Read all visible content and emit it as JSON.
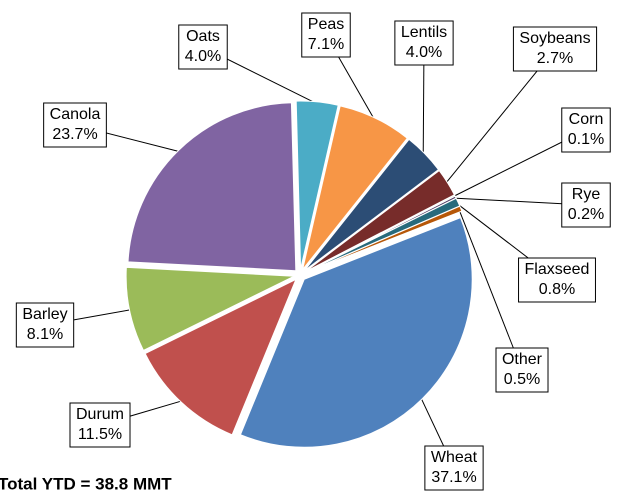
{
  "chart_data": {
    "type": "pie",
    "categories": [
      "Oats",
      "Peas",
      "Lentils",
      "Soybeans",
      "Corn",
      "Rye",
      "Flaxseed",
      "Other",
      "Wheat",
      "Durum",
      "Barley",
      "Canola"
    ],
    "values": [
      4.0,
      7.1,
      4.0,
      2.7,
      0.1,
      0.2,
      0.8,
      0.5,
      37.1,
      11.5,
      8.1,
      23.7
    ],
    "value_labels": [
      "4.0%",
      "7.1%",
      "4.0%",
      "2.7%",
      "0.1%",
      "0.2%",
      "0.8%",
      "0.5%",
      "37.1%",
      "11.5%",
      "8.1%",
      "23.7%"
    ],
    "colors": [
      "#4bacc6",
      "#f79646",
      "#2c4d75",
      "#772c2a",
      "#5f7530",
      "#4d3b62",
      "#276a7c",
      "#b65708",
      "#4f81bd",
      "#c0504d",
      "#9bbb59",
      "#8064a2"
    ],
    "annotation": "Total YTD = 38.8 MMT"
  }
}
